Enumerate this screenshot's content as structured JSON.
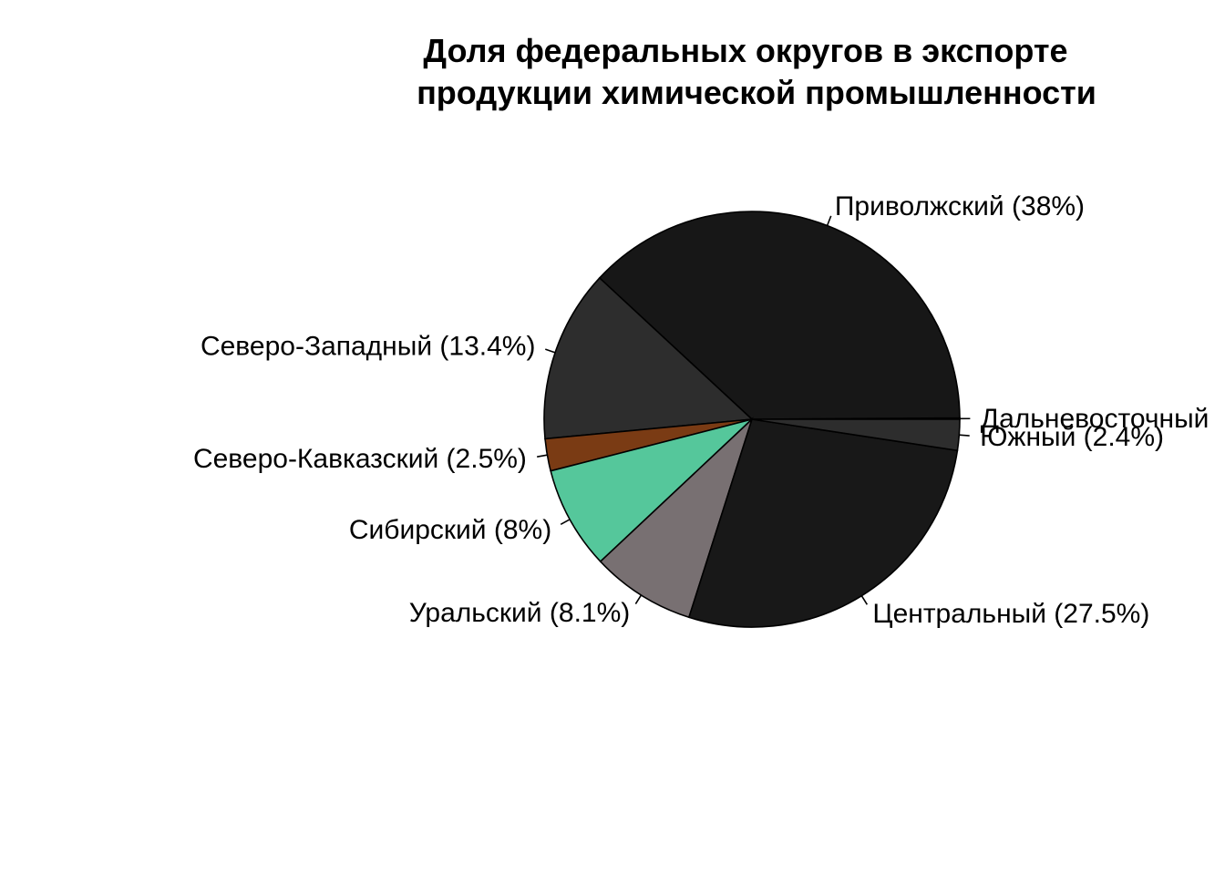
{
  "chart_data": {
    "type": "pie",
    "title": [
      "Доля федеральных округов в экспорте",
      "продукции химической промышленности"
    ],
    "start_angle_deg": 0,
    "direction": "counterclockwise",
    "slices": [
      {
        "label": "Дальневосточный",
        "value": 0.1,
        "display": "Дальневосточный",
        "color": "#000000"
      },
      {
        "label": "Приволжский",
        "value": 38,
        "display": "Приволжский  (38%)",
        "color": "#171717"
      },
      {
        "label": "Северо-Западный",
        "value": 13.4,
        "display": "Северо-Западный  (13.4%)",
        "color": "#2d2d2d"
      },
      {
        "label": "Северо-Кавказский",
        "value": 2.5,
        "display": "Северо-Кавказский  (2.5%)",
        "color": "#7a3b14"
      },
      {
        "label": "Сибирский",
        "value": 8,
        "display": "Сибирский  (8%)",
        "color": "#55c79b"
      },
      {
        "label": "Уральский",
        "value": 8.1,
        "display": "Уральский  (8.1%)",
        "color": "#787072"
      },
      {
        "label": "Центральный",
        "value": 27.5,
        "display": "Центральный  (27.5%)",
        "color": "#181818"
      },
      {
        "label": "Южный",
        "value": 2.4,
        "display": "Южный  (2.4%)",
        "color": "#2d2d2d"
      }
    ]
  }
}
